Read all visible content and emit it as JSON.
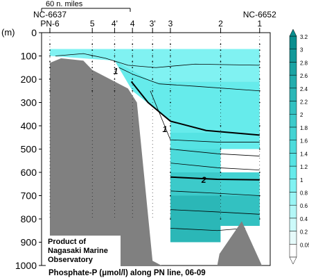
{
  "chart_data": {
    "type": "contour section",
    "caption": "Phosphate-P (μmol/l) along PN line, 06-09",
    "ylabel": "(m)",
    "y_ticks": [
      0,
      100,
      200,
      300,
      400,
      500,
      600,
      700,
      800,
      900,
      1000
    ],
    "ylim": [
      0,
      1000
    ],
    "y_inverted": true,
    "scale_bar_label": "60 n. miles",
    "station_ids_top": [
      {
        "label": "NC-6637",
        "station": "6"
      },
      {
        "label": "NC-6652",
        "station": "1"
      }
    ],
    "stations": [
      "PN-6",
      "5",
      "4'",
      "4",
      "3'",
      "3",
      "2",
      "1"
    ],
    "station_distance_nmi": [
      0,
      38,
      58,
      74,
      92,
      108,
      153,
      188
    ],
    "contour_labels": [
      {
        "text": "1",
        "station_distance_nmi": 59,
        "depth_m": 165
      },
      {
        "text": "1",
        "station_distance_nmi": 103,
        "depth_m": 415
      },
      {
        "text": "2",
        "station_distance_nmi": 138,
        "depth_m": 633
      }
    ],
    "colorbar": {
      "levels": [
        0.05,
        0.2,
        0.4,
        0.6,
        0.8,
        1.0,
        1.2,
        1.4,
        1.6,
        1.8,
        2.0,
        2.2,
        2.4,
        2.6,
        2.8,
        3.0,
        3.2
      ],
      "colors": [
        "#ffffff",
        "#e6fafa",
        "#ccfafa",
        "#b3f7f7",
        "#99f5f5",
        "#80f2f2",
        "#66ebeb",
        "#55e3e3",
        "#4ddbdb",
        "#44d3d3",
        "#3ccaca",
        "#33c1c1",
        "#2bb7b7",
        "#22adad",
        "#1aa3a3",
        "#129999",
        "#0a8f8f"
      ]
    },
    "bottom_color": "#808080",
    "credit": [
      "Product of",
      "Nagasaki Marine",
      "Observatory"
    ]
  }
}
